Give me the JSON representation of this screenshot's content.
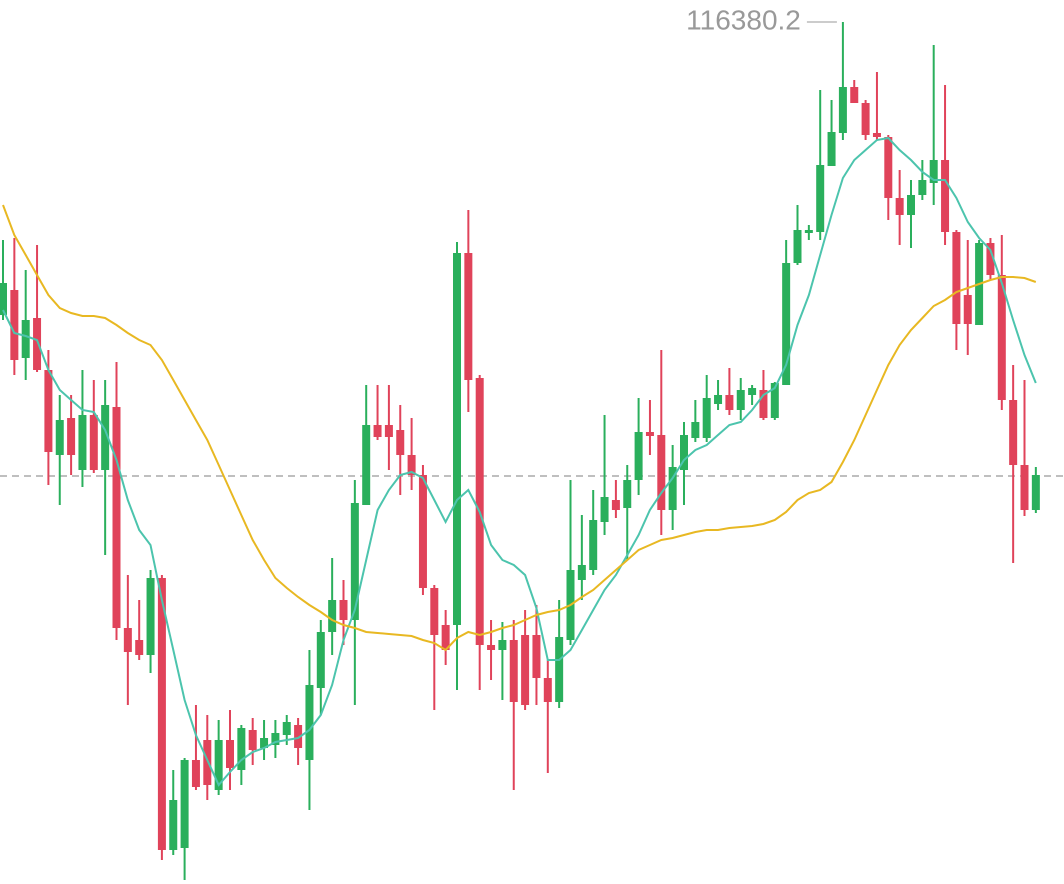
{
  "chart_data": {
    "type": "candlestick",
    "up_color": "#2aaf5c",
    "down_color": "#e0435a",
    "ylim": [
      112932,
      116468
    ],
    "high_label": "116380.2",
    "price_line": 114564,
    "open": [
      115208,
      115308,
      115036,
      115196,
      114988,
      114648,
      114796,
      114588,
      114808,
      114588,
      114840,
      113956,
      113908,
      113848,
      114156,
      113068,
      113076,
      113428,
      113508,
      113308,
      113508,
      113388,
      113548,
      113476,
      113488,
      113528,
      113568,
      113428,
      113716,
      113940,
      114068,
      113988,
      114448,
      114768,
      114768,
      114748,
      114648,
      114568,
      114116,
      113968,
      113968,
      115456,
      114956,
      113888,
      113868,
      113908,
      113928,
      113928,
      113756,
      113660,
      113908,
      114148,
      114188,
      114380,
      114468,
      114436,
      114548,
      114740,
      114728,
      114428,
      114588,
      114716,
      114716,
      114852,
      114888,
      114828,
      114888,
      114908,
      114796,
      114928,
      115416,
      115536,
      115540,
      115804,
      115936,
      116120,
      116056,
      115936,
      115920,
      115676,
      115608,
      115688,
      115736,
      115828,
      115540,
      115288,
      115168,
      115496,
      115368,
      114868,
      114608,
      114428
    ],
    "high": [
      115508,
      115516,
      115388,
      115488,
      115068,
      114888,
      114888,
      114988,
      114948,
      114948,
      115020,
      114168,
      114068,
      114188,
      114168,
      113388,
      113436,
      113648,
      113608,
      113588,
      113628,
      113568,
      113596,
      113588,
      113588,
      113608,
      113596,
      113868,
      113988,
      114236,
      114148,
      114548,
      114928,
      114928,
      114928,
      114848,
      114796,
      114608,
      114128,
      114028,
      115500,
      115628,
      114968,
      113988,
      113980,
      113988,
      114028,
      114048,
      113828,
      114068,
      114548,
      114408,
      114508,
      114808,
      114548,
      114608,
      114876,
      114868,
      115068,
      114688,
      114780,
      114868,
      114968,
      114948,
      114996,
      114956,
      114928,
      114988,
      114940,
      115508,
      115648,
      115568,
      116108,
      116068,
      116380.2,
      116148,
      116068,
      116180,
      115928,
      115788,
      115748,
      115828,
      116288,
      116128,
      115548,
      115508,
      115508,
      115516,
      115528,
      115008,
      114948,
      114600
    ],
    "low": [
      115188,
      114968,
      114948,
      114980,
      114528,
      114448,
      114568,
      114520,
      114576,
      114248,
      113908,
      113648,
      113828,
      113776,
      113028,
      113048,
      112948,
      113308,
      113268,
      113288,
      113308,
      113328,
      113408,
      113428,
      113436,
      113488,
      113408,
      113228,
      113608,
      113848,
      113888,
      113648,
      114448,
      114708,
      114588,
      114488,
      114508,
      114088,
      113628,
      113808,
      113708,
      114820,
      113708,
      113748,
      113668,
      113308,
      113628,
      113648,
      113376,
      113636,
      113888,
      114068,
      114168,
      114328,
      114396,
      114228,
      114488,
      114648,
      114328,
      114348,
      114448,
      114700,
      114700,
      114828,
      114808,
      114788,
      114848,
      114788,
      114788,
      114928,
      115408,
      115508,
      115508,
      115804,
      115908,
      116056,
      115908,
      115908,
      115588,
      115488,
      115476,
      115668,
      115648,
      115488,
      115068,
      115048,
      115168,
      115348,
      114828,
      114216,
      114404,
      114416
    ],
    "close": [
      115336,
      115028,
      115188,
      114988,
      114660,
      114788,
      114648,
      114808,
      114588,
      114848,
      113956,
      113860,
      113848,
      114156,
      113068,
      113268,
      113428,
      113320,
      113328,
      113508,
      113396,
      113556,
      113468,
      113516,
      113536,
      113580,
      113476,
      113728,
      113940,
      114068,
      113988,
      114456,
      114768,
      114720,
      114720,
      114648,
      114568,
      114116,
      113928,
      113868,
      115456,
      114948,
      113888,
      113868,
      113908,
      113660,
      113648,
      113756,
      113660,
      113920,
      114188,
      114208,
      114388,
      114480,
      114428,
      114548,
      114740,
      114724,
      114428,
      114600,
      114728,
      114780,
      114876,
      114888,
      114828,
      114908,
      114916,
      114796,
      114936,
      115416,
      115548,
      115548,
      115808,
      115940,
      116120,
      116056,
      115928,
      115920,
      115676,
      115608,
      115688,
      115748,
      115828,
      115540,
      115172,
      115172,
      115496,
      115368,
      114868,
      114608,
      114428,
      114568
    ],
    "lines": [
      {
        "color": "#4cc4ad",
        "values": [
          115228,
          115136,
          115124,
          115108,
          114988,
          114908,
          114868,
          114828,
          114820,
          114748,
          114628,
          114468,
          114348,
          114288,
          114068,
          113868,
          113668,
          113528,
          113428,
          113328,
          113380,
          113428,
          113460,
          113476,
          113500,
          113508,
          113516,
          113548,
          113608,
          113728,
          113908,
          114028,
          114228,
          114428,
          114508,
          114568,
          114580,
          114556,
          114468,
          114380,
          114468,
          114508,
          114420,
          114288,
          114228,
          114208,
          114168,
          114036,
          113828,
          113828,
          113868,
          113948,
          114028,
          114108,
          114168,
          114248,
          114328,
          114428,
          114496,
          114556,
          114628,
          114668,
          114688,
          114728,
          114768,
          114780,
          114828,
          114888,
          114916,
          115008,
          115168,
          115288,
          115448,
          115608,
          115756,
          115828,
          115868,
          115908,
          115916,
          115868,
          115828,
          115780,
          115748,
          115748,
          115676,
          115580,
          115516,
          115468,
          115336,
          115188,
          115048,
          114936
        ]
      },
      {
        "color": "#e8b822",
        "values": [
          115648,
          115528,
          115448,
          115368,
          115288,
          115236,
          115216,
          115204,
          115204,
          115196,
          115168,
          115136,
          115108,
          115088,
          115028,
          114948,
          114868,
          114788,
          114708,
          114608,
          114508,
          114408,
          114308,
          114228,
          114156,
          114116,
          114080,
          114048,
          114020,
          113988,
          113968,
          113956,
          113940,
          113936,
          113932,
          113928,
          113924,
          113908,
          113896,
          113868,
          113916,
          113940,
          113928,
          113940,
          113956,
          113968,
          113988,
          114008,
          114020,
          114028,
          114048,
          114080,
          114108,
          114148,
          114188,
          114228,
          114268,
          114288,
          114308,
          114316,
          114328,
          114340,
          114348,
          114348,
          114356,
          114360,
          114364,
          114372,
          114388,
          114420,
          114468,
          114496,
          114508,
          114540,
          114620,
          114708,
          114808,
          114908,
          115008,
          115088,
          115148,
          115196,
          115244,
          115268,
          115300,
          115316,
          115332,
          115348,
          115360,
          115360,
          115356,
          115340
        ]
      }
    ]
  }
}
